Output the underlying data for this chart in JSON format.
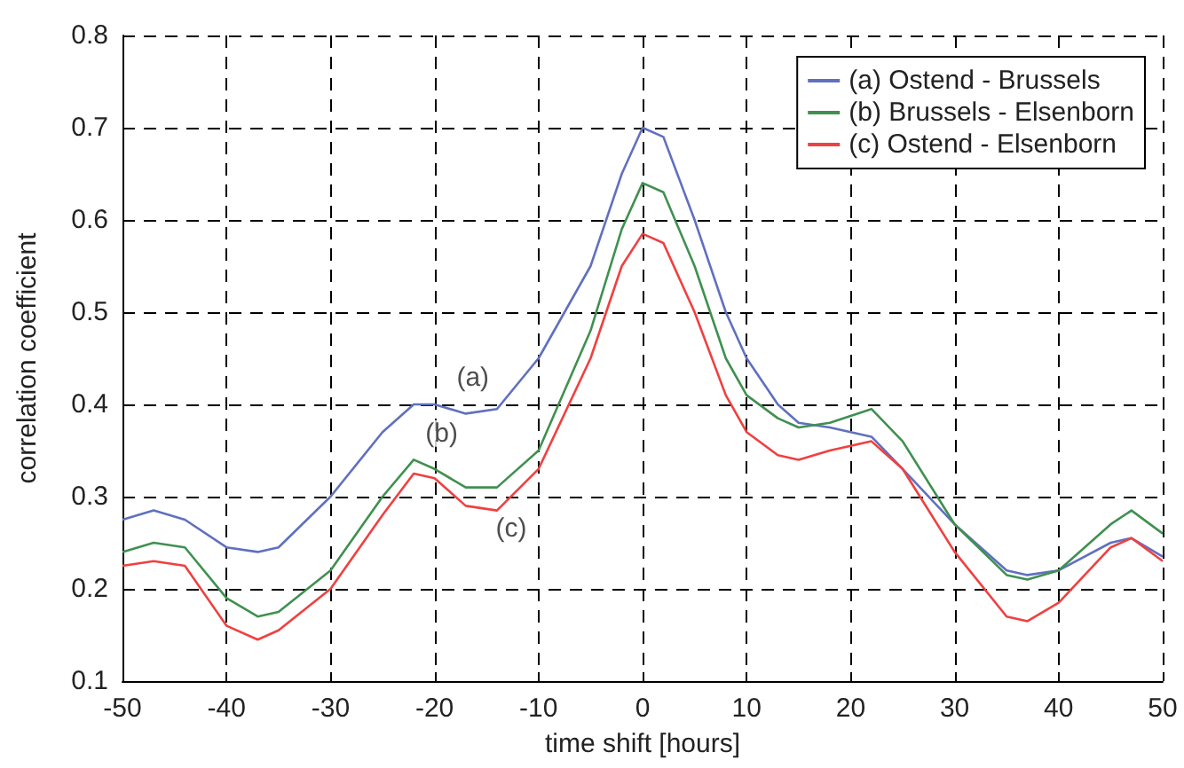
{
  "chart_data": {
    "type": "line",
    "xlabel": "time shift [hours]",
    "ylabel": "correlation coefficient",
    "xlim": [
      -50,
      50
    ],
    "xticks": [
      -50,
      -40,
      -30,
      -20,
      -10,
      0,
      10,
      20,
      30,
      40,
      50
    ],
    "ylim": [
      0.1,
      0.8
    ],
    "yticks": [
      0.1,
      0.2,
      0.3,
      0.4,
      0.5,
      0.6,
      0.7,
      0.8
    ],
    "grid": true,
    "legend": "top right",
    "marker": "none",
    "line_style": "solid",
    "x": [
      -50,
      -47,
      -44,
      -40,
      -37,
      -35,
      -30,
      -25,
      -22,
      -20,
      -17,
      -14,
      -10,
      -5,
      -2,
      0,
      2,
      5,
      8,
      10,
      13,
      15,
      18,
      22,
      25,
      30,
      35,
      37,
      40,
      45,
      47,
      50
    ],
    "series": [
      {
        "name": "(a) Ostend - Brussels",
        "color": "#6070c0",
        "values": [
          0.275,
          0.285,
          0.275,
          0.245,
          0.24,
          0.245,
          0.3,
          0.37,
          0.4,
          0.4,
          0.39,
          0.395,
          0.45,
          0.55,
          0.65,
          0.7,
          0.69,
          0.6,
          0.5,
          0.45,
          0.4,
          0.38,
          0.375,
          0.365,
          0.33,
          0.27,
          0.22,
          0.215,
          0.22,
          0.25,
          0.255,
          0.235
        ]
      },
      {
        "name": "(b) Brussels - Elsenborn",
        "color": "#409050",
        "values": [
          0.24,
          0.25,
          0.245,
          0.19,
          0.17,
          0.175,
          0.22,
          0.3,
          0.34,
          0.33,
          0.31,
          0.31,
          0.35,
          0.48,
          0.59,
          0.64,
          0.63,
          0.55,
          0.45,
          0.41,
          0.385,
          0.375,
          0.38,
          0.395,
          0.36,
          0.27,
          0.215,
          0.21,
          0.22,
          0.27,
          0.285,
          0.26
        ]
      },
      {
        "name": "(c) Ostend - Elsenborn",
        "color": "#f04040",
        "values": [
          0.225,
          0.23,
          0.225,
          0.16,
          0.145,
          0.155,
          0.2,
          0.28,
          0.325,
          0.32,
          0.29,
          0.285,
          0.33,
          0.45,
          0.55,
          0.585,
          0.575,
          0.5,
          0.41,
          0.37,
          0.345,
          0.34,
          0.35,
          0.36,
          0.33,
          0.24,
          0.17,
          0.165,
          0.185,
          0.245,
          0.255,
          0.23
        ]
      }
    ],
    "annotations": [
      {
        "text": "(a)",
        "x": -17,
        "y": 0.39
      },
      {
        "text": "(b)",
        "x": -20,
        "y": 0.33
      },
      {
        "text": "(c)",
        "x": -14,
        "y": 0.285
      }
    ]
  }
}
